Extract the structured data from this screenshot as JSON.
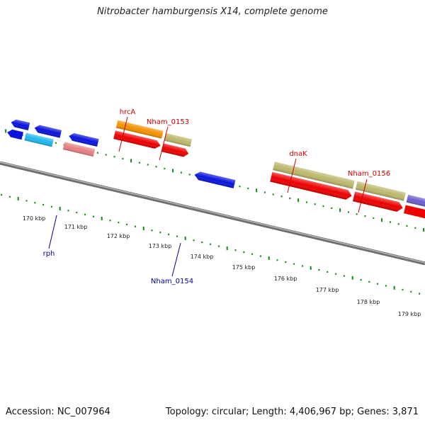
{
  "title": "Nitrobacter hamburgensis X14, complete genome",
  "footer": {
    "accession": "Accession: NC_007964",
    "topology": "Topology: circular; Length: 4,406,967 bp; Genes: 3,871"
  },
  "scale": {
    "ticks": [
      "170 kbp",
      "171 kbp",
      "172 kbp",
      "173 kbp",
      "174 kbp",
      "175 kbp",
      "176 kbp",
      "177 kbp",
      "178 kbp",
      "179 kbp"
    ]
  },
  "gene_labels": {
    "forward": [
      "hrcA",
      "Nham_0153",
      "dnaK",
      "Nham_0156"
    ],
    "reverse": [
      "rph",
      "Nham_0154"
    ]
  },
  "colors": {
    "forward_label": "#cc0000",
    "reverse_label": "#000099",
    "tick": "#138a13",
    "cds": "#ee0000",
    "orange_gene": "#f39200",
    "khaki_gene": "#bdb76b",
    "blue_gene": "#0a14dd",
    "cyan_gene": "#20b8ee",
    "pink_gene": "#e88080",
    "purple_gene": "#6a5fd0",
    "steel_gene": "#3a6fa6",
    "backbone": "#8a8a8a"
  }
}
